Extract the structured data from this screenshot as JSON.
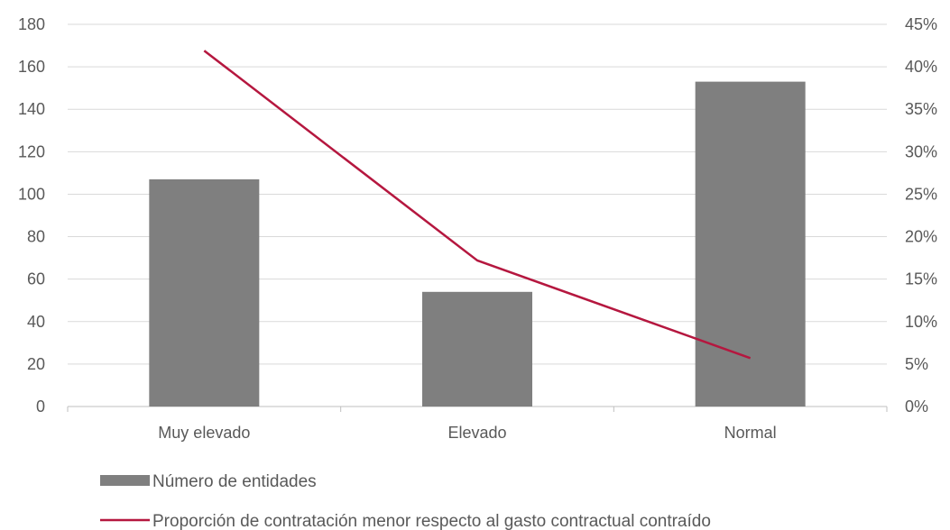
{
  "chart_data": {
    "type": "bar",
    "categories": [
      "Muy elevado",
      "Elevado",
      "Normal"
    ],
    "series": [
      {
        "name": "Número de entidades",
        "type": "bar",
        "axis": "left",
        "values": [
          107,
          54,
          153
        ]
      },
      {
        "name": "Proporción de contratación menor respecto al gasto contractual contraído",
        "type": "line",
        "axis": "right",
        "values": [
          0.419,
          0.172,
          0.057
        ]
      }
    ],
    "y_left": {
      "min": 0,
      "max": 180,
      "ticks": [
        0,
        20,
        40,
        60,
        80,
        100,
        120,
        140,
        160,
        180
      ]
    },
    "y_right": {
      "min": 0,
      "max": 0.45,
      "ticks": [
        "0%",
        "5%",
        "10%",
        "15%",
        "20%",
        "25%",
        "30%",
        "35%",
        "40%",
        "45%"
      ]
    },
    "grid": true,
    "legend_position": "bottom",
    "colors": {
      "bar": "#7f7f7f",
      "line": "#b5173f",
      "grid": "#d9d9d9",
      "axis": "#bfbfbf",
      "text": "#595959"
    }
  }
}
